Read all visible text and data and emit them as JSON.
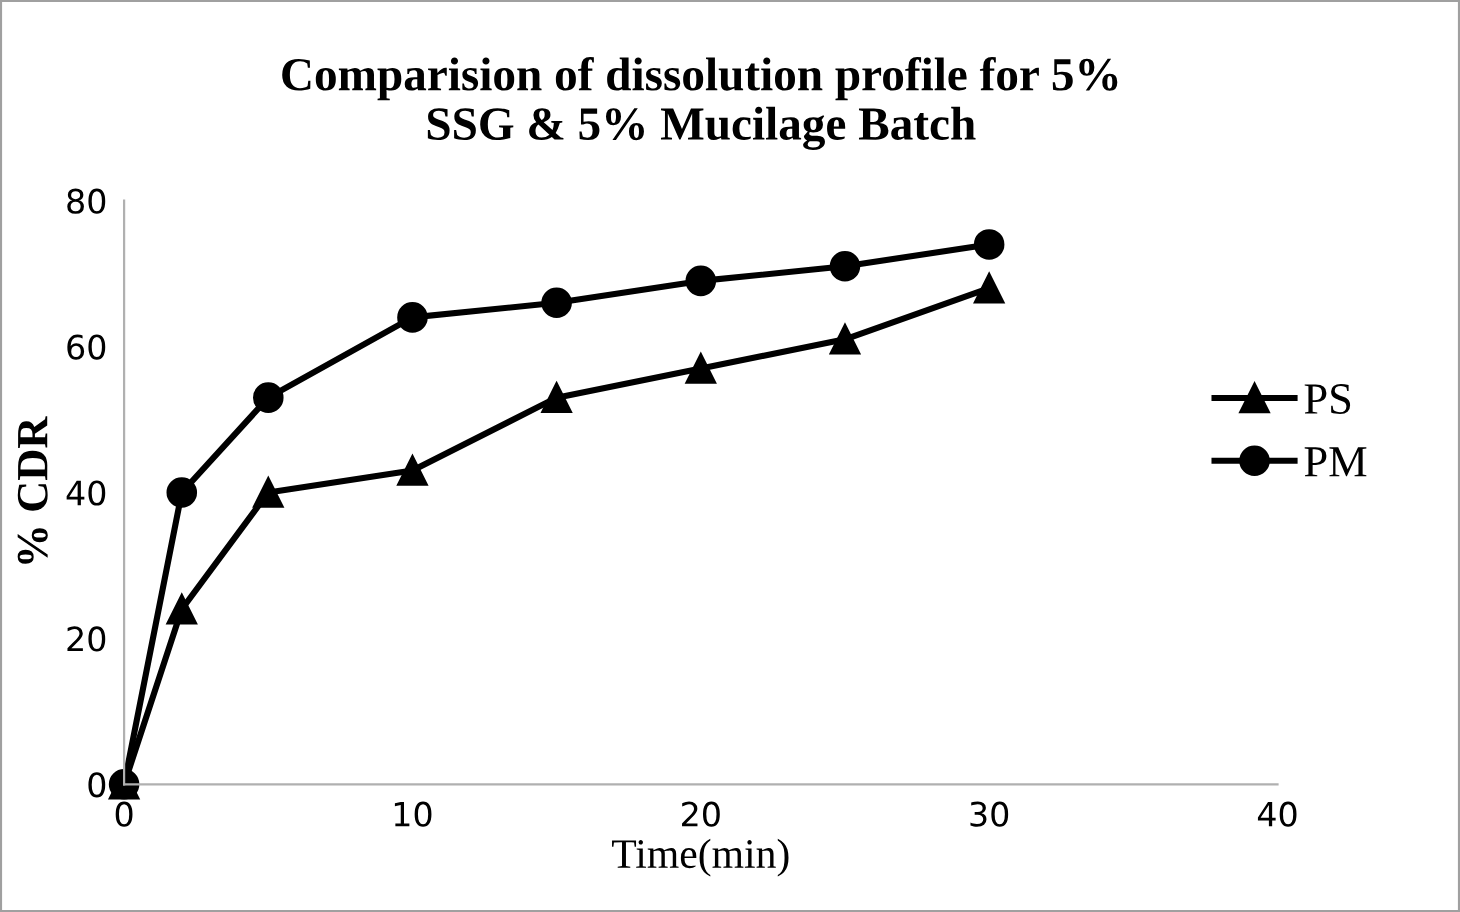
{
  "chart_data": {
    "type": "line",
    "title": "Comparision of dissolution profile for 5%\nSSG & 5% Mucilage Batch",
    "xlabel": "Time(min)",
    "ylabel": "% CDR",
    "x": [
      0,
      2,
      5,
      10,
      15,
      20,
      25,
      30
    ],
    "series": [
      {
        "name": "PS",
        "color": "#000000",
        "marker": "triangle",
        "values": [
          0,
          24,
          40,
          43,
          53,
          57,
          61,
          68
        ]
      },
      {
        "name": "PM",
        "color": "#000000",
        "marker": "circle",
        "values": [
          0,
          40,
          53,
          64,
          66,
          69,
          71,
          74
        ]
      }
    ],
    "xlim": [
      0,
      40
    ],
    "xticks": [
      0,
      10,
      20,
      30,
      40
    ],
    "ylim": [
      0,
      80
    ],
    "yticks": [
      0,
      20,
      40,
      60,
      80
    ],
    "grid": false,
    "legend": "right",
    "line_style": "solid"
  }
}
